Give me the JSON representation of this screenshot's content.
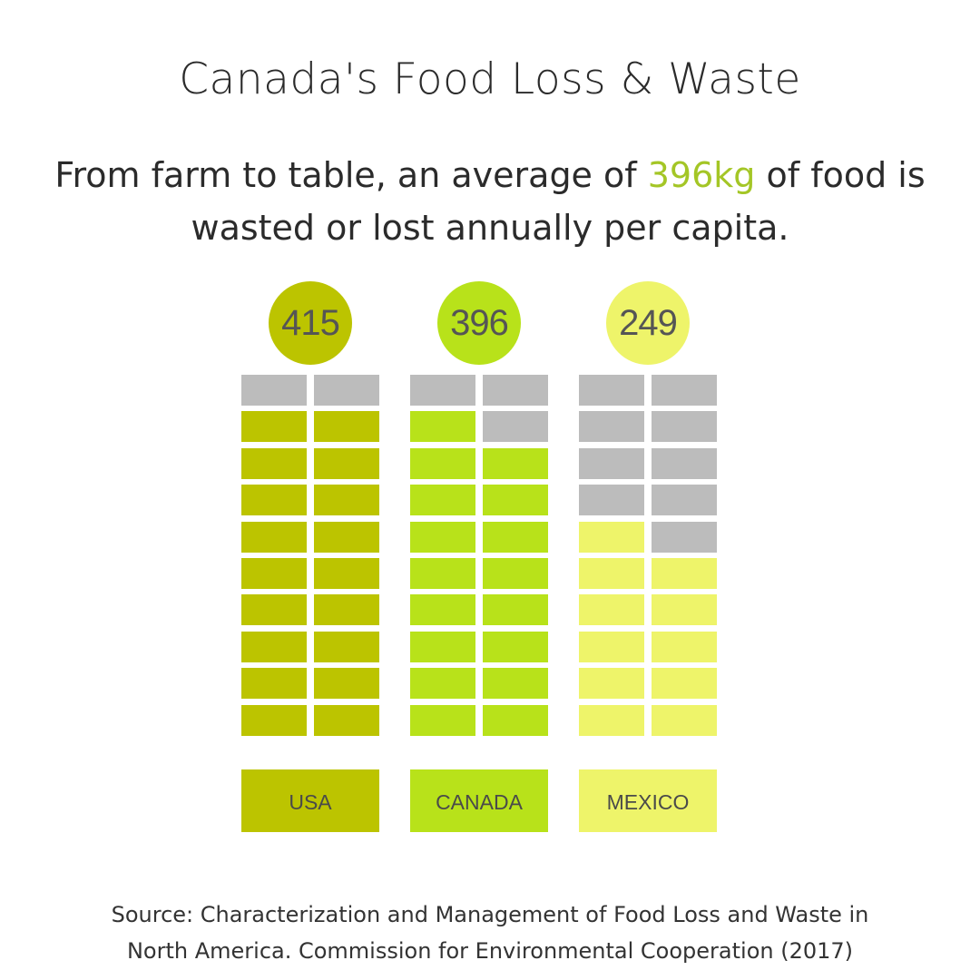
{
  "title": "Canada's Food Loss & Waste",
  "subtitle": {
    "before": "From farm to table, an average of ",
    "highlight": "396kg",
    "after": " of food is wasted or lost annually per capita."
  },
  "source": {
    "line1": "Source: Characterization and Management of Food Loss and Waste in",
    "line2": "North America. Commission for Environmental Cooperation (2017)"
  },
  "colors": {
    "empty": "#bcbcbc",
    "highlight": "#a4c626"
  },
  "chart_data": {
    "type": "bar",
    "units": "kg per capita per year",
    "grid": {
      "rows": 10,
      "cols": 2,
      "total_blocks": 20
    },
    "categories": [
      "USA",
      "CANADA",
      "MEXICO"
    ],
    "values": [
      415,
      396,
      249
    ],
    "filled_blocks": [
      18,
      17,
      11
    ],
    "series": [
      {
        "category": "USA",
        "value": 415,
        "filled_blocks": 18,
        "color": "#bcc400"
      },
      {
        "category": "CANADA",
        "value": 396,
        "filled_blocks": 17,
        "color": "#b8e21a"
      },
      {
        "category": "MEXICO",
        "value": 249,
        "filled_blocks": 11,
        "color": "#eef46a"
      }
    ]
  }
}
